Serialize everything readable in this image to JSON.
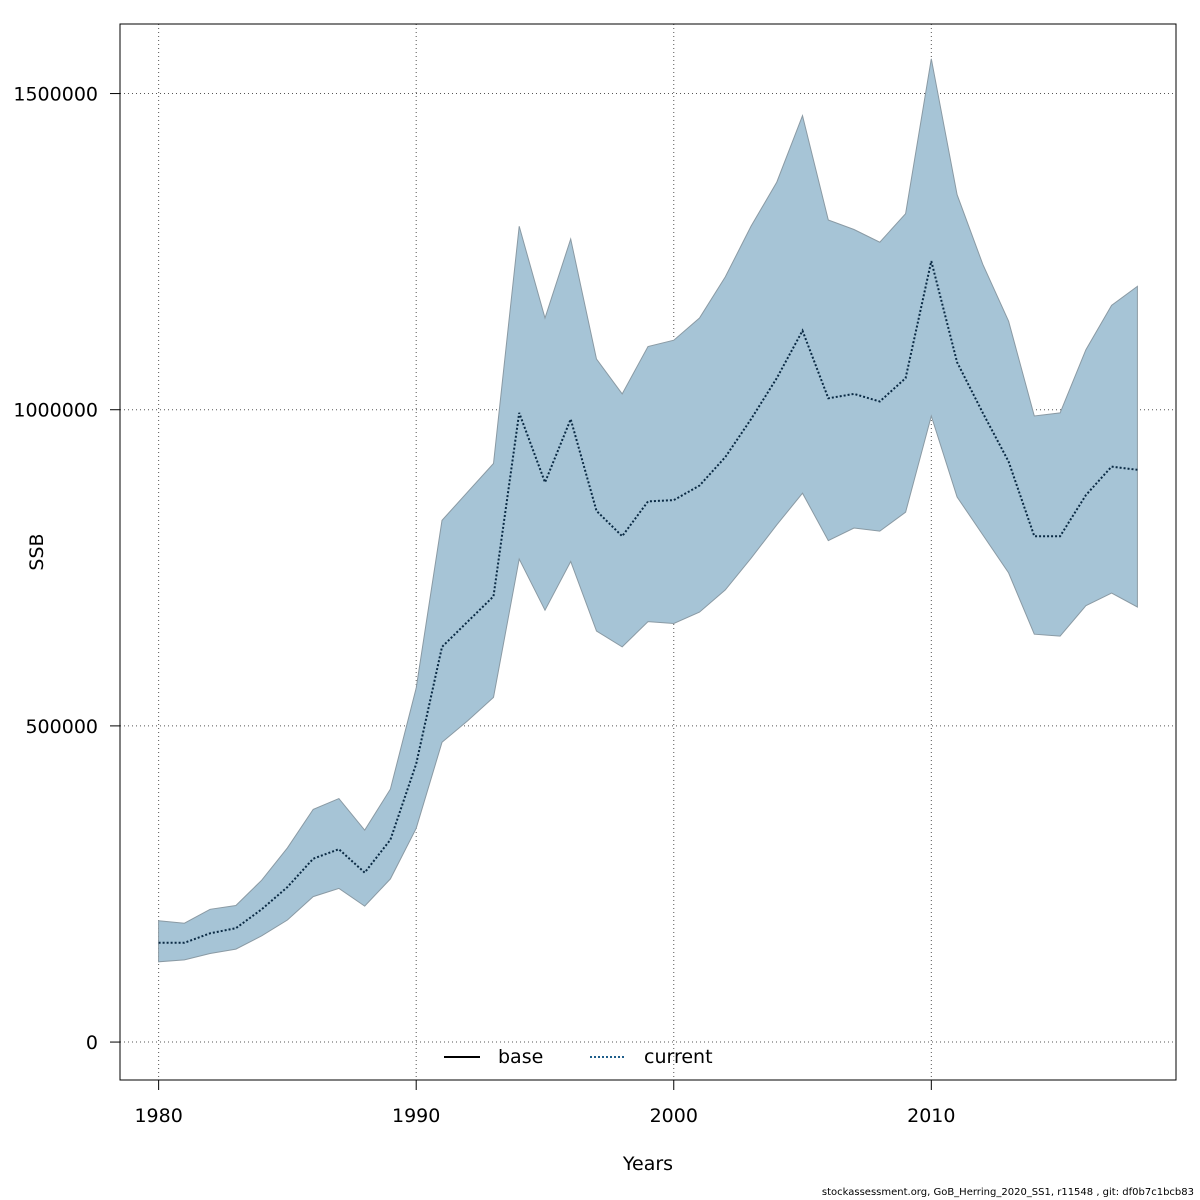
{
  "chart_data": {
    "type": "area",
    "xlabel": "Years",
    "ylabel": "SSB",
    "xlim": [
      1978.5,
      2019.5
    ],
    "ylim": [
      -60000,
      1610000
    ],
    "x_ticks": [
      1980,
      1990,
      2000,
      2010
    ],
    "x_tick_labels": [
      "1980",
      "1990",
      "2000",
      "2010"
    ],
    "y_ticks": [
      0,
      500000,
      1000000,
      1500000
    ],
    "y_tick_labels": [
      "0",
      "500000",
      "1000000",
      "1500000"
    ],
    "grid": true,
    "legend_position": "bottom",
    "legend": [
      {
        "label": "base",
        "style": "solid",
        "color": "#000000"
      },
      {
        "label": "current",
        "style": "dotted",
        "color": "#1f5f8b"
      }
    ],
    "band_color": "#a6c4d6",
    "x": [
      1980,
      1981,
      1982,
      1983,
      1984,
      1985,
      1986,
      1987,
      1988,
      1989,
      1990,
      1991,
      1992,
      1993,
      1994,
      1995,
      1996,
      1997,
      1998,
      1999,
      2000,
      2001,
      2002,
      2003,
      2004,
      2005,
      2006,
      2007,
      2008,
      2009,
      2010,
      2011,
      2012,
      2013,
      2014,
      2015,
      2016,
      2017,
      2018
    ],
    "series": [
      {
        "name": "current",
        "values": [
          157000,
          157000,
          172000,
          180000,
          210000,
          245000,
          290000,
          305000,
          268000,
          320000,
          440000,
          625000,
          665000,
          705000,
          995000,
          885000,
          985000,
          840000,
          800000,
          855000,
          857000,
          880000,
          925000,
          985000,
          1050000,
          1125000,
          1018000,
          1025000,
          1013000,
          1050000,
          1235000,
          1075000,
          995000,
          918000,
          800000,
          800000,
          865000,
          910000,
          905000
        ]
      },
      {
        "name": "upper",
        "values": [
          192000,
          188000,
          210000,
          216000,
          256000,
          307000,
          368000,
          385000,
          335000,
          400000,
          560000,
          825000,
          870000,
          915000,
          1290000,
          1145000,
          1270000,
          1080000,
          1025000,
          1100000,
          1110000,
          1145000,
          1210000,
          1290000,
          1360000,
          1465000,
          1300000,
          1285000,
          1265000,
          1310000,
          1555000,
          1340000,
          1230000,
          1140000,
          990000,
          995000,
          1095000,
          1165000,
          1195000
        ]
      },
      {
        "name": "lower",
        "values": [
          127000,
          130000,
          140000,
          147000,
          168000,
          193000,
          230000,
          243000,
          215000,
          258000,
          338000,
          474000,
          508000,
          545000,
          764000,
          683000,
          760000,
          650000,
          625000,
          665000,
          662000,
          680000,
          715000,
          765000,
          818000,
          868000,
          793000,
          813000,
          808000,
          838000,
          990000,
          862000,
          802000,
          742000,
          645000,
          642000,
          690000,
          710000,
          688000
        ]
      }
    ]
  },
  "footer": "stockassessment.org, GoB_Herring_2020_SS1, r11548 , git: df0b7c1bcb83"
}
